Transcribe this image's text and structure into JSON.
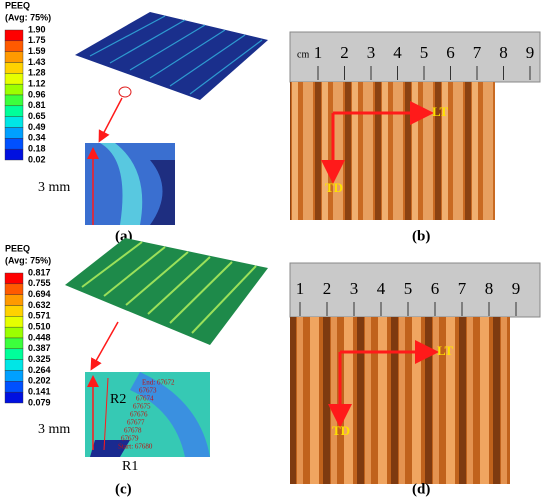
{
  "panels": [
    {
      "label": "(a)",
      "legend": {
        "title": "PEEQ",
        "subtitle": "(Avg: 75%)",
        "values": [
          "1.90",
          "1.75",
          "1.59",
          "1.43",
          "1.28",
          "1.12",
          "0.96",
          "0.81",
          "0.65",
          "0.49",
          "0.34",
          "0.18",
          "0.02"
        ]
      },
      "scale_text": "3 mm"
    },
    {
      "label": "(b)",
      "ruler_unit": "cm",
      "ruler": [
        "1",
        "2",
        "3",
        "4",
        "5",
        "6",
        "7",
        "8",
        "9"
      ],
      "arrow_x": "LT",
      "arrow_y": "TD"
    },
    {
      "label": "(c)",
      "legend": {
        "title": "PEEQ",
        "subtitle": "(Avg: 75%)",
        "values": [
          "0.817",
          "0.755",
          "0.694",
          "0.632",
          "0.571",
          "0.510",
          "0.448",
          "0.387",
          "0.325",
          "0.264",
          "0.202",
          "0.141",
          "0.079"
        ]
      },
      "scale_text": "3 mm",
      "radius_outer": "R2",
      "radius_inner": "R1",
      "node_labels": [
        "End: 67672",
        "67673",
        "67674",
        "67675",
        "67676",
        "67677",
        "67678",
        "67679",
        "Start: 67680"
      ]
    },
    {
      "label": "(d)",
      "ruler": [
        "1",
        "2",
        "3",
        "4",
        "5",
        "6",
        "7",
        "8",
        "9"
      ],
      "arrow_x": "LT",
      "arrow_y": "TD"
    }
  ]
}
